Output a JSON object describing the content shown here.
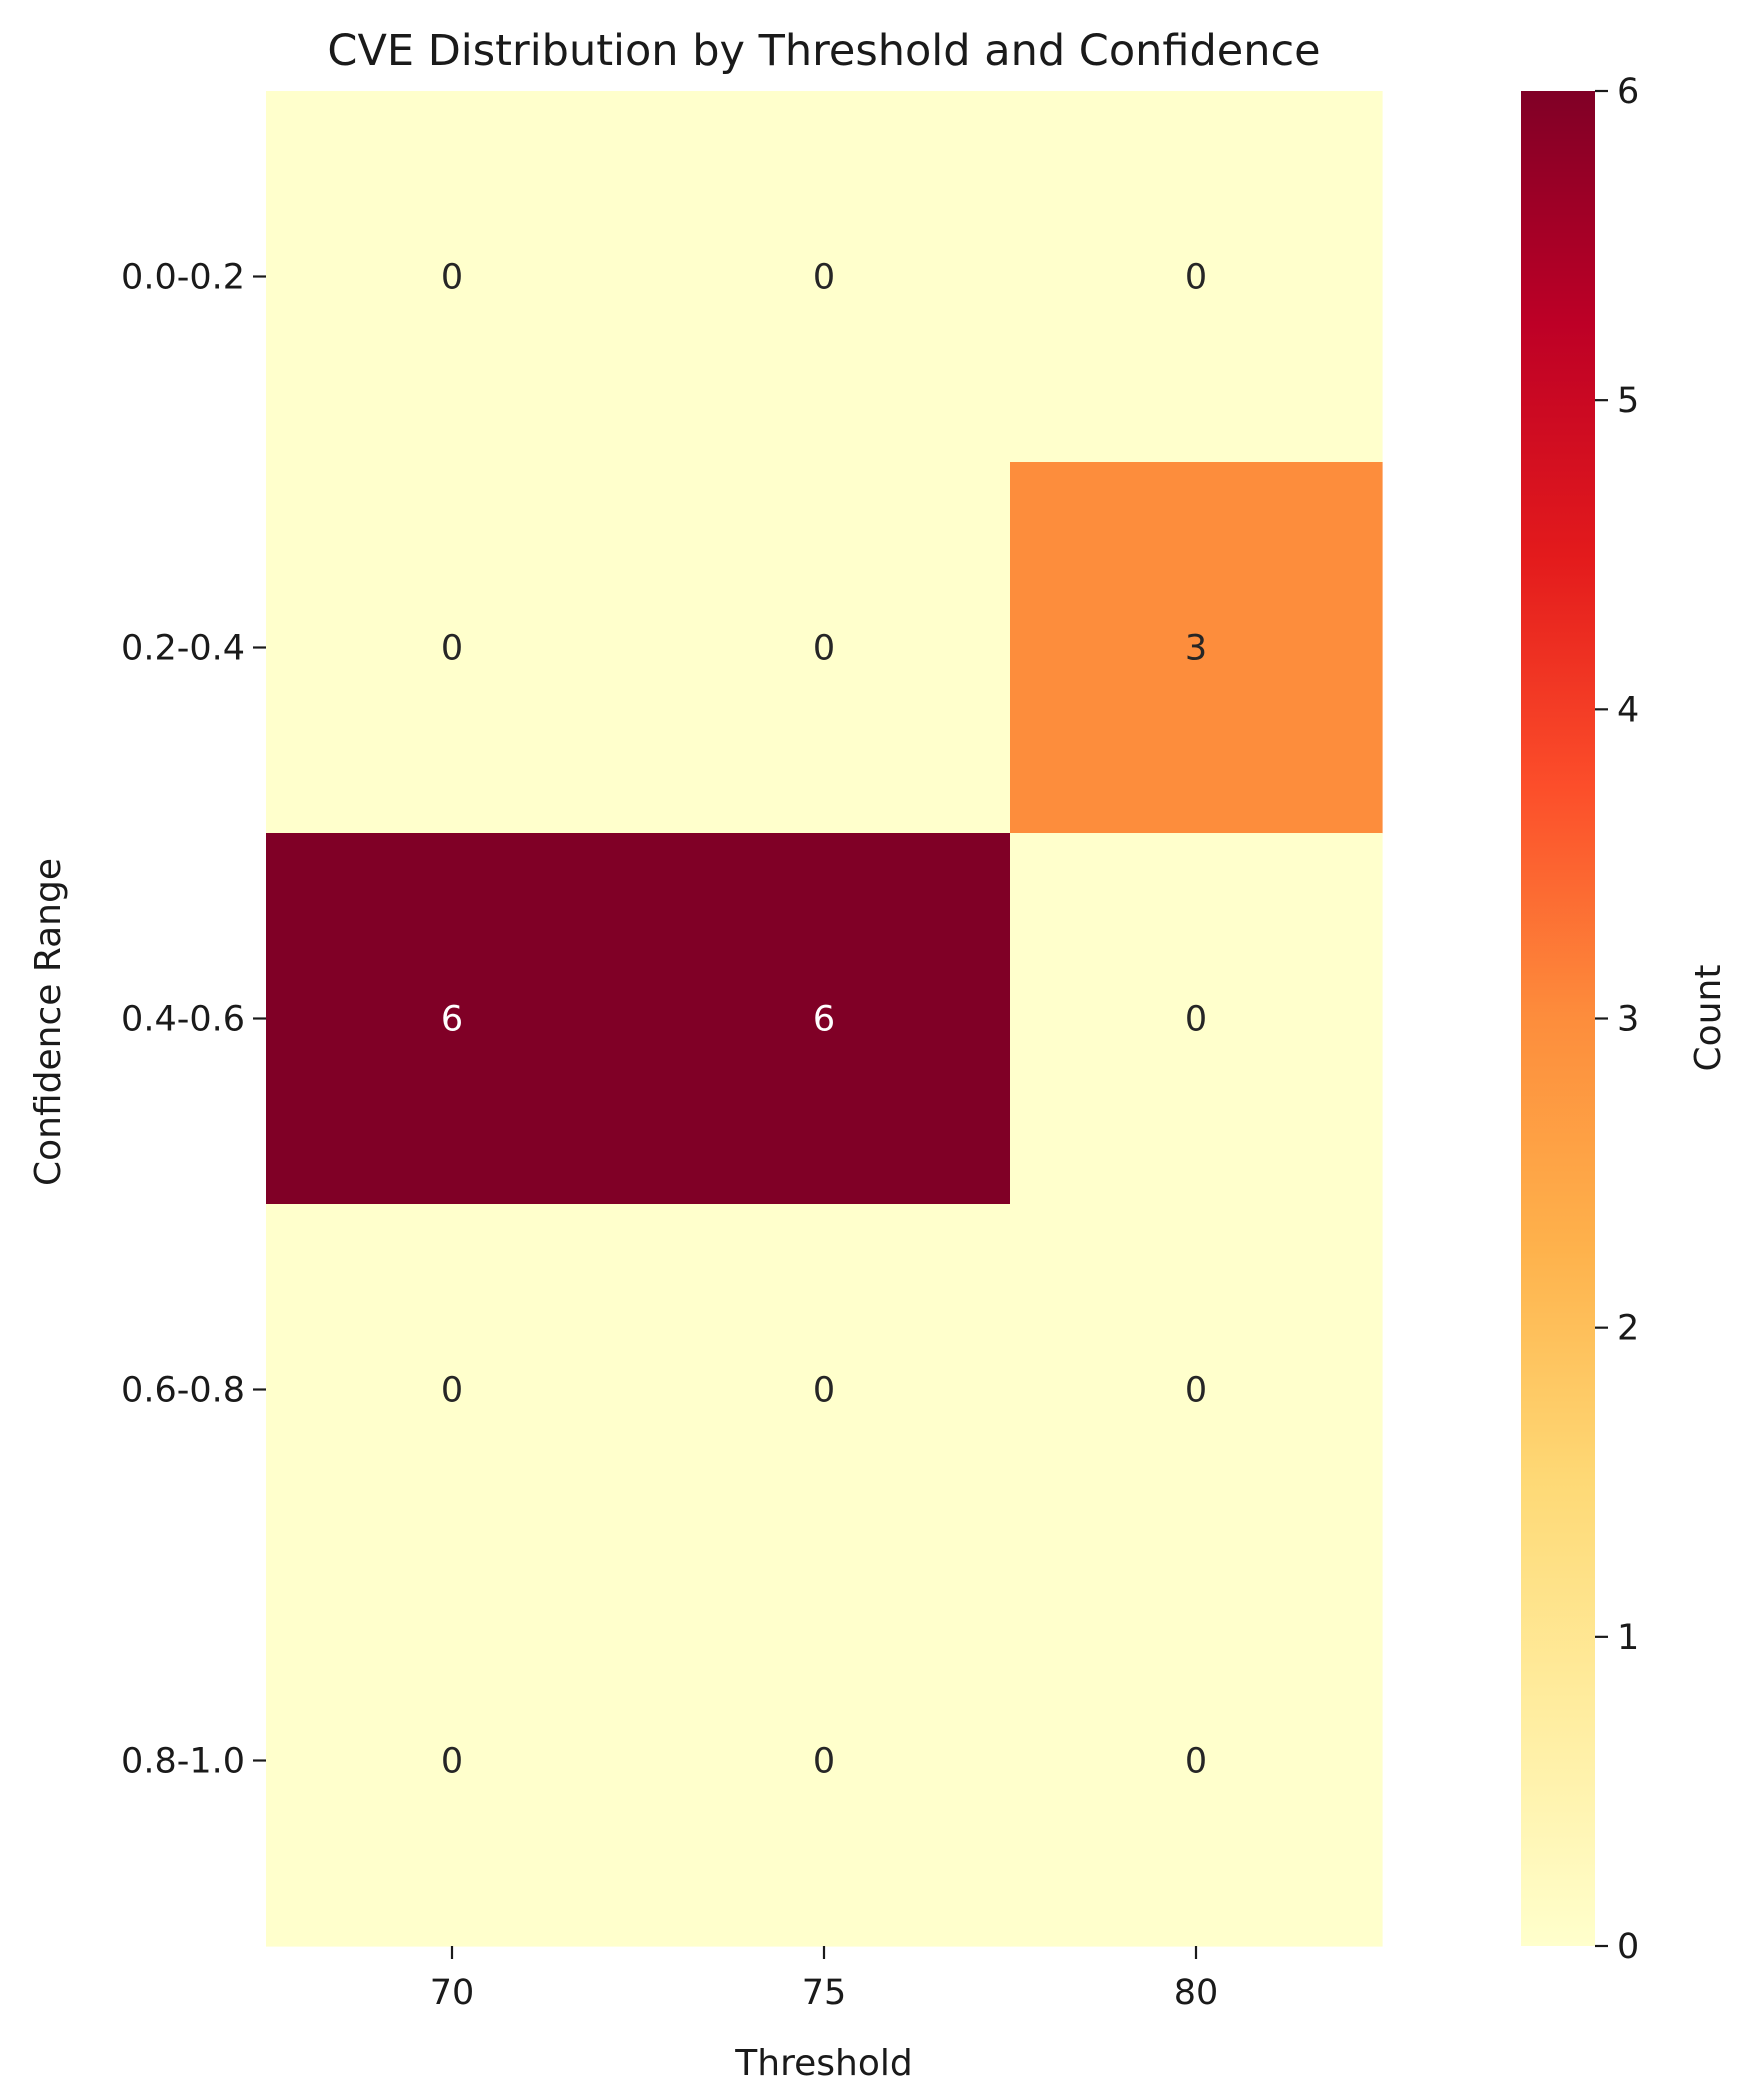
{
  "chart_data": {
    "type": "heatmap",
    "title": "CVE Distribution by Threshold and Confidence",
    "xlabel": "Threshold",
    "ylabel": "Confidence Range",
    "x_categories": [
      "70",
      "75",
      "80"
    ],
    "y_categories": [
      "0.0-0.2",
      "0.2-0.4",
      "0.4-0.6",
      "0.6-0.8",
      "0.8-1.0"
    ],
    "values": [
      [
        0,
        0,
        0
      ],
      [
        0,
        0,
        3
      ],
      [
        6,
        6,
        0
      ],
      [
        0,
        0,
        0
      ],
      [
        0,
        0,
        0
      ]
    ],
    "annotations": true,
    "colormap": "YlOrRd",
    "colorbar": {
      "label": "Count",
      "range": [
        0,
        6
      ],
      "ticks": [
        "0",
        "1",
        "2",
        "3",
        "4",
        "5",
        "6"
      ]
    }
  }
}
